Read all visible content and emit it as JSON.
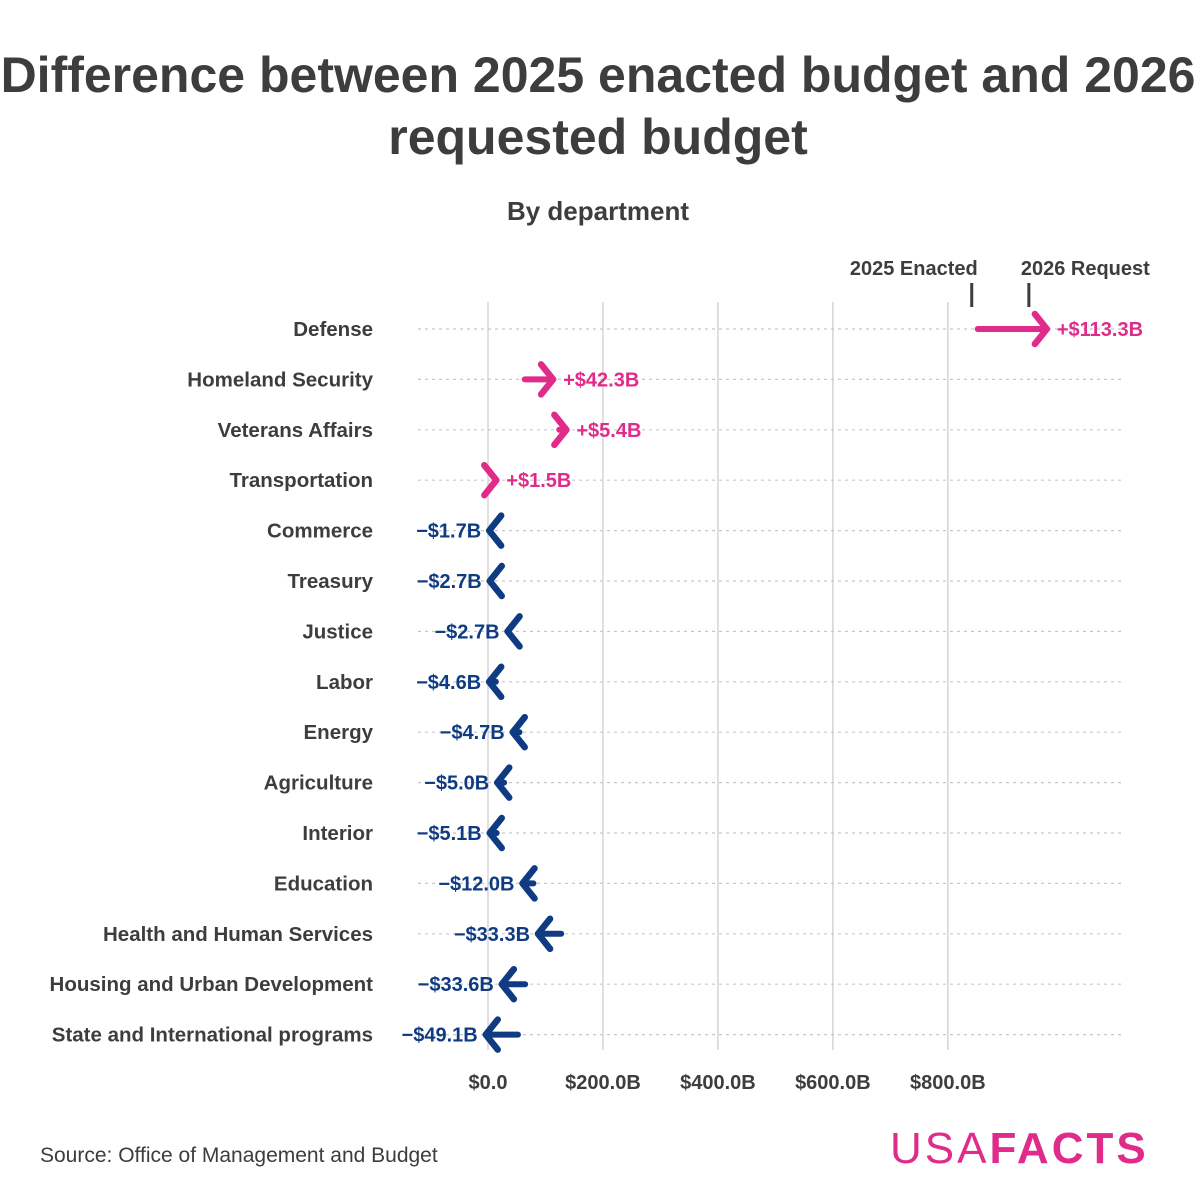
{
  "chart_data": {
    "type": "arrow",
    "title": "Difference between 2025 enacted budget and 2026 requested budget",
    "subtitle": "By department",
    "legend": {
      "start_label": "2025 Enacted",
      "end_label": "2026 Request",
      "placement": "top-right"
    },
    "xlim": [
      0,
      1100
    ],
    "x_ticks": [
      0,
      200,
      400,
      600,
      800
    ],
    "x_tick_labels": [
      "$0.0",
      "$200.0B",
      "$400.0B",
      "$600.0B",
      "$800.0B"
    ],
    "xlabel": "",
    "ylabel": "",
    "colors": {
      "increase": "#e02b8a",
      "decrease": "#0f3b82",
      "text": "#3d3d3d",
      "grid": "#d5d5d5"
    },
    "series": [
      {
        "name": "Defense",
        "enacted": 852,
        "request": 965.3,
        "label": "+$113.3B"
      },
      {
        "name": "Homeland Security",
        "enacted": 64,
        "request": 106.3,
        "label": "+$42.3B"
      },
      {
        "name": "Veterans Affairs",
        "enacted": 124,
        "request": 129.4,
        "label": "+$5.4B"
      },
      {
        "name": "Transportation",
        "enacted": 6,
        "request": 7.5,
        "label": "+$1.5B"
      },
      {
        "name": "Commerce",
        "enacted": 10.7,
        "request": 9.0,
        "label": "−$1.7B"
      },
      {
        "name": "Treasury",
        "enacted": 12.7,
        "request": 10.0,
        "label": "−$2.7B"
      },
      {
        "name": "Justice",
        "enacted": 43.7,
        "request": 41.0,
        "label": "−$2.7B"
      },
      {
        "name": "Labor",
        "enacted": 13.6,
        "request": 9.0,
        "label": "−$4.6B"
      },
      {
        "name": "Energy",
        "enacted": 54.7,
        "request": 50.0,
        "label": "−$4.7B"
      },
      {
        "name": "Agriculture",
        "enacted": 28,
        "request": 23.0,
        "label": "−$5.0B"
      },
      {
        "name": "Interior",
        "enacted": 15.1,
        "request": 10.0,
        "label": "−$5.1B"
      },
      {
        "name": "Education",
        "enacted": 79,
        "request": 67.0,
        "label": "−$12.0B"
      },
      {
        "name": "Health and Human Services",
        "enacted": 127.3,
        "request": 94.0,
        "label": "−$33.3B"
      },
      {
        "name": "Housing and Urban Development",
        "enacted": 64.6,
        "request": 31.0,
        "label": "−$33.6B"
      },
      {
        "name": "State and International programs",
        "enacted": 52.1,
        "request": 3.0,
        "label": "−$49.1B"
      }
    ]
  },
  "footer": {
    "source": "Source: Office of Management and Budget",
    "logo_usa": "USA",
    "logo_facts": "FACTS"
  }
}
